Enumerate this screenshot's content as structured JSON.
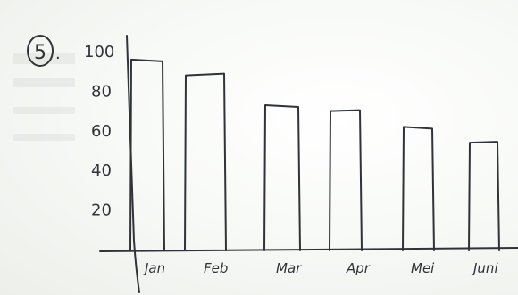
{
  "problem": {
    "number": "5",
    "suffix": "."
  },
  "chart_data": {
    "type": "bar",
    "categories": [
      "Jan",
      "Feb",
      "Mar",
      "Apr",
      "Mei",
      "Juni"
    ],
    "values": [
      96,
      88,
      73,
      70,
      62,
      54
    ],
    "yticks": [
      "100",
      "80",
      "60",
      "40",
      "20"
    ],
    "ylim": [
      0,
      100
    ],
    "title": "",
    "xlabel": "",
    "ylabel": "",
    "grid": false
  },
  "colors": {
    "ink": "#30343a",
    "paper": "#f7f9f6"
  }
}
